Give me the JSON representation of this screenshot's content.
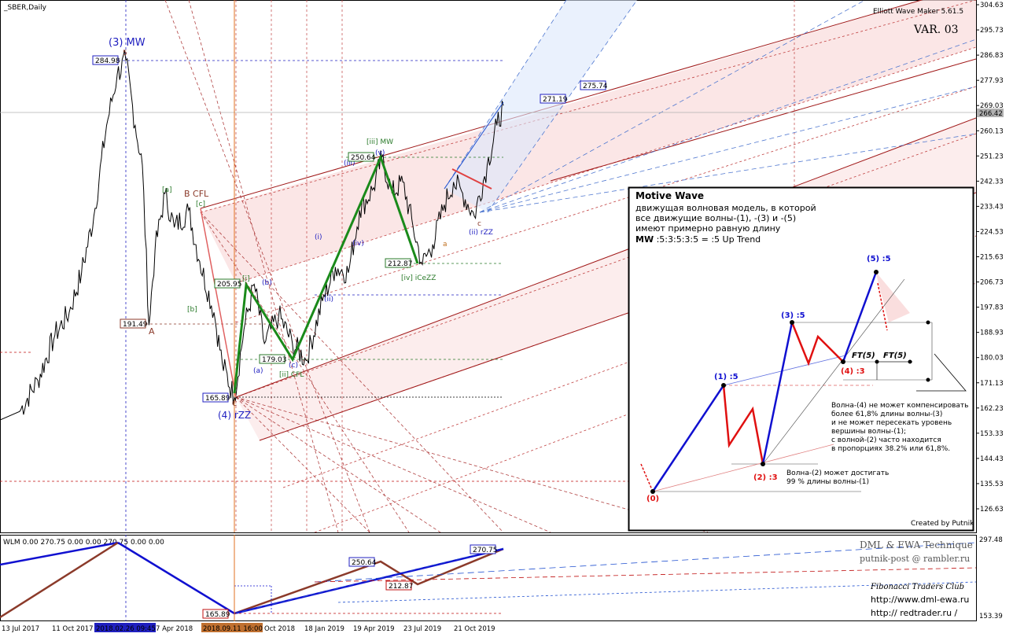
{
  "header": {
    "symbol": "_SBER,Daily",
    "indicator": "Elliott Wave Maker 5.61.5",
    "variant": "VAR. 03"
  },
  "chart_data": {
    "type": "line",
    "title": "_SBER,Daily",
    "price_axis": {
      "ticks": [
        "304.63",
        "295.73",
        "286.83",
        "277.93",
        "269.03",
        "260.13",
        "251.23",
        "242.33",
        "233.43",
        "224.53",
        "215.63",
        "206.73",
        "197.83",
        "188.93",
        "180.03",
        "171.13",
        "162.23",
        "153.33",
        "144.43",
        "135.53",
        "126.63"
      ],
      "current_price": "266.42"
    },
    "time_axis": {
      "ticks": [
        "13 Jul 2017",
        "11 Oct 2017",
        "2018.02.26 09:45",
        "7 Apr 2018",
        "2018.09.11 16:00",
        "Oct 2018",
        "18 Jan 2019",
        "19 Apr 2019",
        "23 Jul 2019",
        "21 Oct 2019"
      ]
    },
    "price_series": [
      {
        "d": "2017-07-13",
        "p": 161
      },
      {
        "d": "2017-08-15",
        "p": 172
      },
      {
        "d": "2017-09-15",
        "p": 188
      },
      {
        "d": "2017-10-11",
        "p": 196
      },
      {
        "d": "2017-11-10",
        "p": 210
      },
      {
        "d": "2017-12-10",
        "p": 230
      },
      {
        "d": "2018-01-10",
        "p": 262
      },
      {
        "d": "2018-02-05",
        "p": 280
      },
      {
        "d": "2018-02-26",
        "p": 284.98
      },
      {
        "d": "2018-03-15",
        "p": 262
      },
      {
        "d": "2018-03-28",
        "p": 248
      },
      {
        "d": "2018-04-09",
        "p": 191.49
      },
      {
        "d": "2018-04-20",
        "p": 218
      },
      {
        "d": "2018-05-08",
        "p": 238
      },
      {
        "d": "2018-05-25",
        "p": 226
      },
      {
        "d": "2018-06-20",
        "p": 232
      },
      {
        "d": "2018-07-10",
        "p": 214
      },
      {
        "d": "2018-08-05",
        "p": 196
      },
      {
        "d": "2018-08-20",
        "p": 178
      },
      {
        "d": "2018-09-11",
        "p": 165.89
      },
      {
        "d": "2018-09-25",
        "p": 190
      },
      {
        "d": "2018-10-10",
        "p": 205.95
      },
      {
        "d": "2018-10-25",
        "p": 185
      },
      {
        "d": "2018-11-15",
        "p": 195
      },
      {
        "d": "2018-12-05",
        "p": 185
      },
      {
        "d": "2018-12-25",
        "p": 179.03
      },
      {
        "d": "2019-01-18",
        "p": 200
      },
      {
        "d": "2019-02-10",
        "p": 212
      },
      {
        "d": "2019-03-05",
        "p": 210
      },
      {
        "d": "2019-03-25",
        "p": 232
      },
      {
        "d": "2019-04-19",
        "p": 240
      },
      {
        "d": "2019-05-05",
        "p": 250.64
      },
      {
        "d": "2019-05-25",
        "p": 238
      },
      {
        "d": "2019-06-15",
        "p": 242
      },
      {
        "d": "2019-07-05",
        "p": 226
      },
      {
        "d": "2019-07-23",
        "p": 212.87
      },
      {
        "d": "2019-08-10",
        "p": 220
      },
      {
        "d": "2019-08-30",
        "p": 234
      },
      {
        "d": "2019-09-15",
        "p": 242
      },
      {
        "d": "2019-10-01",
        "p": 238
      },
      {
        "d": "2019-10-21",
        "p": 230
      },
      {
        "d": "2019-11-10",
        "p": 248
      },
      {
        "d": "2019-11-25",
        "p": 262
      },
      {
        "d": "2019-12-05",
        "p": 269
      }
    ],
    "price_labels": [
      "284.98",
      "191.49",
      "165.89",
      "205.95",
      "179.03",
      "250.64",
      "212.87",
      "271.19",
      "275.74"
    ],
    "wave_labels": [
      "(3) MW",
      "5",
      "B CFL",
      "A",
      "C",
      "(4) rZZ",
      "[a]",
      "[b]",
      "[c]",
      "[i]",
      "[ii] CFL",
      "[iii] MW",
      "[iv] iCeZZ",
      "(a)",
      "(b)",
      "(c)",
      "(i)",
      "(ii)",
      "(iii)",
      "(iv)",
      "(v)",
      "(ii) rZZ",
      "a",
      "c"
    ],
    "wlm": {
      "header": "WLM 0.00 270.75 0.00 0.00 270.75 0.00 0.00",
      "ticks": [
        "297.48",
        "153.39"
      ],
      "labels": [
        "250.64",
        "212.87",
        "165.89",
        "270.75"
      ]
    }
  },
  "info_box": {
    "title": "Motive Wave",
    "desc": [
      "движущая волновая модель, в которой",
      "все движущие волны-(1), -(3) и -(5)",
      "имеют примерно равную длину"
    ],
    "formula_bold": "MW",
    "formula_rest": " :5:3:5:3:5 = :5 Up Trend",
    "wave_labels": [
      "(0)",
      "(1) :5",
      "(2) :3",
      "(3) :5",
      "(4) :3",
      "(5) :5",
      "FT(5)",
      "FT(5)"
    ],
    "note_wave4": [
      "Волна-(4) не может компенсировать",
      "более 61,8% длины волны-(3)",
      "и не может пересекать уровень",
      "вершины волны-(1);",
      "с волной-(2) часто находится",
      "в пропорциях 38.2% или 61,8%."
    ],
    "note_wave2": [
      "Волна-(2) может достигать",
      "99 % длины волны-(1)"
    ],
    "credit": "Created by Putnik"
  },
  "branding": {
    "title": "DML & EWA Technique",
    "email": "putnik-post @ rambler.ru",
    "club": "Fibonacci   Traders   Club",
    "url1": "http://www.dml-ewa.ru",
    "url2": "http:// redtrader.ru /"
  },
  "colors": {
    "impulse": "#1010d0",
    "correction": "#e01010",
    "subwave": "#1a8a1a",
    "fibo": "#c04040",
    "channel": "#f6d3d3"
  }
}
